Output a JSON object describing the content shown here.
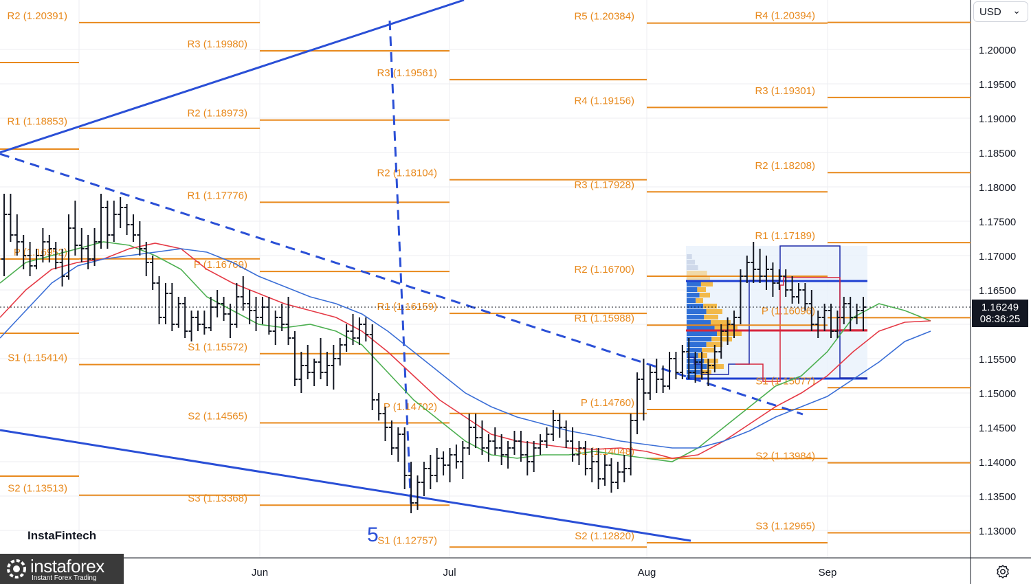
{
  "currency": {
    "label": "USD"
  },
  "brand": {
    "insta": "InstaFintech",
    "forex_name": "instaforex",
    "forex_tag": "Instant Forex Trading"
  },
  "price_badge": {
    "price": "1.16249",
    "countdown": "08:36:25"
  },
  "wave_label": "5",
  "colors": {
    "pivot": "#e8891c",
    "trend": "#2a4fd6",
    "ma_green": "#4caf50",
    "ma_red": "#e53945",
    "ma_blue": "#3a6ed6",
    "bars": "#131722"
  },
  "chart_data": {
    "type": "line",
    "title": "",
    "xlabel": "",
    "ylabel": "",
    "ylim": [
      1.125,
      1.2085
    ],
    "y_ticks": [
      "1.13000",
      "1.13500",
      "1.14000",
      "1.14500",
      "1.15000",
      "1.15500",
      "1.16500",
      "1.17000",
      "1.17500",
      "1.18000",
      "1.18500",
      "1.19000",
      "1.19500",
      "1.20000"
    ],
    "x_ticks": [
      "Jun",
      "Jul",
      "Aug",
      "Sep"
    ],
    "current_price": 1.16249,
    "pivot_levels": [
      {
        "period": "May",
        "labels": [
          {
            "label": "R2 (1.20391)",
            "value": 1.20391
          },
          {
            "label": "R1 (1.18853)",
            "value": 1.18853
          },
          {
            "label": "P (1.16952)",
            "value": 1.16952
          },
          {
            "label": "S1 (1.15414)",
            "value": 1.15414
          },
          {
            "label": "S2 (1.13513)",
            "value": 1.13513
          }
        ]
      },
      {
        "period": "Jun",
        "labels": [
          {
            "label": "R3 (1.19980)",
            "value": 1.1998
          },
          {
            "label": "R2 (1.18973)",
            "value": 1.18973
          },
          {
            "label": "R1 (1.17776)",
            "value": 1.17776
          },
          {
            "label": "P (1.16769)",
            "value": 1.16769
          },
          {
            "label": "S1 (1.15572)",
            "value": 1.15572
          },
          {
            "label": "S2 (1.14565)",
            "value": 1.14565
          },
          {
            "label": "S3 (1.13368)",
            "value": 1.13368
          }
        ]
      },
      {
        "period": "Jul",
        "labels": [
          {
            "label": "R3 (1.19561)",
            "value": 1.19561
          },
          {
            "label": "R2 (1.18104)",
            "value": 1.18104
          },
          {
            "label": "R1 (1.16159)",
            "value": 1.16159
          },
          {
            "label": "P (1.14702)",
            "value": 1.14702
          },
          {
            "label": "S1 (1.12757)",
            "value": 1.12757
          }
        ]
      },
      {
        "period": "Aug",
        "labels": [
          {
            "label": "R5 (1.20384)",
            "value": 1.20384
          },
          {
            "label": "R4 (1.19156)",
            "value": 1.19156
          },
          {
            "label": "R3 (1.17928)",
            "value": 1.17928
          },
          {
            "label": "R2 (1.16700)",
            "value": 1.167
          },
          {
            "label": "R1 (1.15988)",
            "value": 1.15988
          },
          {
            "label": "P (1.14760)",
            "value": 1.1476
          },
          {
            "label": "S1 (1.14048)",
            "value": 1.14048
          },
          {
            "label": "S2 (1.12820)",
            "value": 1.1282
          }
        ]
      },
      {
        "period": "Sep",
        "labels": [
          {
            "label": "R4 (1.20394)",
            "value": 1.20394
          },
          {
            "label": "R3 (1.19301)",
            "value": 1.19301
          },
          {
            "label": "R2 (1.18208)",
            "value": 1.18208
          },
          {
            "label": "R1 (1.17189)",
            "value": 1.17189
          },
          {
            "label": "P (1.16096)",
            "value": 1.16096
          },
          {
            "label": "S1 (1.15077)",
            "value": 1.15077
          },
          {
            "label": "S2 (1.13984)",
            "value": 1.13984
          },
          {
            "label": "S3 (1.12965)",
            "value": 1.12965
          }
        ]
      }
    ],
    "ohlc_bars": [
      {
        "o": 1.1695,
        "h": 1.179,
        "l": 1.167,
        "c": 1.176
      },
      {
        "o": 1.176,
        "h": 1.179,
        "l": 1.172,
        "c": 1.173
      },
      {
        "o": 1.173,
        "h": 1.176,
        "l": 1.17,
        "c": 1.172
      },
      {
        "o": 1.172,
        "h": 1.173,
        "l": 1.168,
        "c": 1.17
      },
      {
        "o": 1.17,
        "h": 1.172,
        "l": 1.167,
        "c": 1.1685
      },
      {
        "o": 1.1685,
        "h": 1.171,
        "l": 1.168,
        "c": 1.17
      },
      {
        "o": 1.17,
        "h": 1.174,
        "l": 1.169,
        "c": 1.172
      },
      {
        "o": 1.172,
        "h": 1.173,
        "l": 1.169,
        "c": 1.171
      },
      {
        "o": 1.171,
        "h": 1.172,
        "l": 1.168,
        "c": 1.169
      },
      {
        "o": 1.169,
        "h": 1.171,
        "l": 1.1655,
        "c": 1.167
      },
      {
        "o": 1.167,
        "h": 1.176,
        "l": 1.1665,
        "c": 1.174
      },
      {
        "o": 1.174,
        "h": 1.178,
        "l": 1.17,
        "c": 1.1715
      },
      {
        "o": 1.1715,
        "h": 1.174,
        "l": 1.169,
        "c": 1.171
      },
      {
        "o": 1.171,
        "h": 1.173,
        "l": 1.168,
        "c": 1.1695
      },
      {
        "o": 1.1695,
        "h": 1.174,
        "l": 1.1685,
        "c": 1.172
      },
      {
        "o": 1.172,
        "h": 1.179,
        "l": 1.171,
        "c": 1.177
      },
      {
        "o": 1.177,
        "h": 1.178,
        "l": 1.171,
        "c": 1.173
      },
      {
        "o": 1.173,
        "h": 1.178,
        "l": 1.172,
        "c": 1.176
      },
      {
        "o": 1.176,
        "h": 1.1785,
        "l": 1.174,
        "c": 1.177
      },
      {
        "o": 1.177,
        "h": 1.1775,
        "l": 1.173,
        "c": 1.1745
      },
      {
        "o": 1.1745,
        "h": 1.176,
        "l": 1.172,
        "c": 1.173
      },
      {
        "o": 1.173,
        "h": 1.175,
        "l": 1.17,
        "c": 1.171
      },
      {
        "o": 1.171,
        "h": 1.172,
        "l": 1.167,
        "c": 1.169
      },
      {
        "o": 1.169,
        "h": 1.17,
        "l": 1.165,
        "c": 1.166
      },
      {
        "o": 1.166,
        "h": 1.167,
        "l": 1.16,
        "c": 1.161
      },
      {
        "o": 1.161,
        "h": 1.166,
        "l": 1.16,
        "c": 1.1645
      },
      {
        "o": 1.1645,
        "h": 1.166,
        "l": 1.159,
        "c": 1.16
      },
      {
        "o": 1.16,
        "h": 1.164,
        "l": 1.1595,
        "c": 1.163
      },
      {
        "o": 1.163,
        "h": 1.164,
        "l": 1.158,
        "c": 1.159
      },
      {
        "o": 1.159,
        "h": 1.162,
        "l": 1.1575,
        "c": 1.161
      },
      {
        "o": 1.161,
        "h": 1.162,
        "l": 1.159,
        "c": 1.16
      },
      {
        "o": 1.16,
        "h": 1.162,
        "l": 1.1585,
        "c": 1.1595
      },
      {
        "o": 1.1595,
        "h": 1.164,
        "l": 1.159,
        "c": 1.1625
      },
      {
        "o": 1.1625,
        "h": 1.165,
        "l": 1.161,
        "c": 1.163
      },
      {
        "o": 1.163,
        "h": 1.164,
        "l": 1.1605,
        "c": 1.1615
      },
      {
        "o": 1.1615,
        "h": 1.163,
        "l": 1.158,
        "c": 1.16
      },
      {
        "o": 1.16,
        "h": 1.166,
        "l": 1.1595,
        "c": 1.164
      },
      {
        "o": 1.164,
        "h": 1.167,
        "l": 1.162,
        "c": 1.163
      },
      {
        "o": 1.163,
        "h": 1.165,
        "l": 1.16,
        "c": 1.162
      },
      {
        "o": 1.162,
        "h": 1.164,
        "l": 1.159,
        "c": 1.161
      },
      {
        "o": 1.161,
        "h": 1.164,
        "l": 1.16,
        "c": 1.1625
      },
      {
        "o": 1.1625,
        "h": 1.164,
        "l": 1.1585,
        "c": 1.159
      },
      {
        "o": 1.159,
        "h": 1.162,
        "l": 1.157,
        "c": 1.161
      },
      {
        "o": 1.161,
        "h": 1.163,
        "l": 1.159,
        "c": 1.16
      },
      {
        "o": 1.16,
        "h": 1.164,
        "l": 1.157,
        "c": 1.158
      },
      {
        "o": 1.158,
        "h": 1.159,
        "l": 1.151,
        "c": 1.152
      },
      {
        "o": 1.152,
        "h": 1.156,
        "l": 1.15,
        "c": 1.154
      },
      {
        "o": 1.154,
        "h": 1.157,
        "l": 1.152,
        "c": 1.153
      },
      {
        "o": 1.153,
        "h": 1.155,
        "l": 1.151,
        "c": 1.1545
      },
      {
        "o": 1.1545,
        "h": 1.158,
        "l": 1.152,
        "c": 1.153
      },
      {
        "o": 1.153,
        "h": 1.156,
        "l": 1.151,
        "c": 1.154
      },
      {
        "o": 1.154,
        "h": 1.157,
        "l": 1.1505,
        "c": 1.155
      },
      {
        "o": 1.155,
        "h": 1.158,
        "l": 1.154,
        "c": 1.157
      },
      {
        "o": 1.157,
        "h": 1.16,
        "l": 1.156,
        "c": 1.159
      },
      {
        "o": 1.159,
        "h": 1.1615,
        "l": 1.157,
        "c": 1.158
      },
      {
        "o": 1.158,
        "h": 1.161,
        "l": 1.157,
        "c": 1.16
      },
      {
        "o": 1.16,
        "h": 1.161,
        "l": 1.1575,
        "c": 1.1585
      },
      {
        "o": 1.1585,
        "h": 1.16,
        "l": 1.1475,
        "c": 1.149
      },
      {
        "o": 1.149,
        "h": 1.15,
        "l": 1.146,
        "c": 1.147
      },
      {
        "o": 1.147,
        "h": 1.148,
        "l": 1.143,
        "c": 1.145
      },
      {
        "o": 1.145,
        "h": 1.146,
        "l": 1.141,
        "c": 1.142
      },
      {
        "o": 1.142,
        "h": 1.145,
        "l": 1.14,
        "c": 1.144
      },
      {
        "o": 1.144,
        "h": 1.145,
        "l": 1.136,
        "c": 1.138
      },
      {
        "o": 1.138,
        "h": 1.14,
        "l": 1.1325,
        "c": 1.134
      },
      {
        "o": 1.134,
        "h": 1.138,
        "l": 1.133,
        "c": 1.137
      },
      {
        "o": 1.137,
        "h": 1.14,
        "l": 1.135,
        "c": 1.139
      },
      {
        "o": 1.139,
        "h": 1.141,
        "l": 1.136,
        "c": 1.138
      },
      {
        "o": 1.138,
        "h": 1.142,
        "l": 1.137,
        "c": 1.1405
      },
      {
        "o": 1.1405,
        "h": 1.1415,
        "l": 1.138,
        "c": 1.1395
      },
      {
        "o": 1.1395,
        "h": 1.142,
        "l": 1.137,
        "c": 1.141
      },
      {
        "o": 1.141,
        "h": 1.1425,
        "l": 1.139,
        "c": 1.14
      },
      {
        "o": 1.14,
        "h": 1.143,
        "l": 1.1375,
        "c": 1.142
      },
      {
        "o": 1.142,
        "h": 1.147,
        "l": 1.141,
        "c": 1.145
      },
      {
        "o": 1.145,
        "h": 1.147,
        "l": 1.142,
        "c": 1.1435
      },
      {
        "o": 1.1435,
        "h": 1.146,
        "l": 1.141,
        "c": 1.142
      },
      {
        "o": 1.142,
        "h": 1.144,
        "l": 1.14,
        "c": 1.143
      },
      {
        "o": 1.143,
        "h": 1.145,
        "l": 1.141,
        "c": 1.142
      },
      {
        "o": 1.142,
        "h": 1.144,
        "l": 1.1395,
        "c": 1.141
      },
      {
        "o": 1.141,
        "h": 1.143,
        "l": 1.139,
        "c": 1.142
      },
      {
        "o": 1.142,
        "h": 1.1445,
        "l": 1.141,
        "c": 1.143
      },
      {
        "o": 1.143,
        "h": 1.1445,
        "l": 1.14,
        "c": 1.141
      },
      {
        "o": 1.141,
        "h": 1.143,
        "l": 1.138,
        "c": 1.14
      },
      {
        "o": 1.14,
        "h": 1.143,
        "l": 1.1385,
        "c": 1.142
      },
      {
        "o": 1.142,
        "h": 1.144,
        "l": 1.141,
        "c": 1.143
      },
      {
        "o": 1.143,
        "h": 1.145,
        "l": 1.142,
        "c": 1.144
      },
      {
        "o": 1.144,
        "h": 1.1475,
        "l": 1.143,
        "c": 1.146
      },
      {
        "o": 1.146,
        "h": 1.147,
        "l": 1.1435,
        "c": 1.145
      },
      {
        "o": 1.145,
        "h": 1.146,
        "l": 1.142,
        "c": 1.143
      },
      {
        "o": 1.143,
        "h": 1.145,
        "l": 1.14,
        "c": 1.141
      },
      {
        "o": 1.141,
        "h": 1.143,
        "l": 1.1395,
        "c": 1.142
      },
      {
        "o": 1.142,
        "h": 1.143,
        "l": 1.138,
        "c": 1.139
      },
      {
        "o": 1.139,
        "h": 1.142,
        "l": 1.137,
        "c": 1.14
      },
      {
        "o": 1.14,
        "h": 1.142,
        "l": 1.136,
        "c": 1.1375
      },
      {
        "o": 1.1375,
        "h": 1.141,
        "l": 1.1365,
        "c": 1.1395
      },
      {
        "o": 1.1395,
        "h": 1.1405,
        "l": 1.1355,
        "c": 1.137
      },
      {
        "o": 1.137,
        "h": 1.14,
        "l": 1.136,
        "c": 1.1385
      },
      {
        "o": 1.1385,
        "h": 1.141,
        "l": 1.137,
        "c": 1.139
      },
      {
        "o": 1.139,
        "h": 1.147,
        "l": 1.138,
        "c": 1.146
      },
      {
        "o": 1.146,
        "h": 1.153,
        "l": 1.144,
        "c": 1.152
      },
      {
        "o": 1.152,
        "h": 1.155,
        "l": 1.146,
        "c": 1.15
      },
      {
        "o": 1.15,
        "h": 1.154,
        "l": 1.149,
        "c": 1.153
      },
      {
        "o": 1.153,
        "h": 1.155,
        "l": 1.15,
        "c": 1.152
      },
      {
        "o": 1.152,
        "h": 1.154,
        "l": 1.15,
        "c": 1.151
      },
      {
        "o": 1.151,
        "h": 1.156,
        "l": 1.1505,
        "c": 1.155
      },
      {
        "o": 1.155,
        "h": 1.156,
        "l": 1.152,
        "c": 1.153
      },
      {
        "o": 1.153,
        "h": 1.157,
        "l": 1.152,
        "c": 1.156
      },
      {
        "o": 1.156,
        "h": 1.158,
        "l": 1.152,
        "c": 1.153
      },
      {
        "o": 1.153,
        "h": 1.156,
        "l": 1.1515,
        "c": 1.1545
      },
      {
        "o": 1.1545,
        "h": 1.156,
        "l": 1.152,
        "c": 1.153
      },
      {
        "o": 1.153,
        "h": 1.155,
        "l": 1.151,
        "c": 1.154
      },
      {
        "o": 1.154,
        "h": 1.157,
        "l": 1.153,
        "c": 1.156
      },
      {
        "o": 1.156,
        "h": 1.16,
        "l": 1.155,
        "c": 1.159
      },
      {
        "o": 1.159,
        "h": 1.161,
        "l": 1.157,
        "c": 1.16
      },
      {
        "o": 1.16,
        "h": 1.162,
        "l": 1.158,
        "c": 1.161
      },
      {
        "o": 1.161,
        "h": 1.168,
        "l": 1.16,
        "c": 1.167
      },
      {
        "o": 1.167,
        "h": 1.17,
        "l": 1.166,
        "c": 1.169
      },
      {
        "o": 1.169,
        "h": 1.172,
        "l": 1.166,
        "c": 1.168
      },
      {
        "o": 1.168,
        "h": 1.171,
        "l": 1.166,
        "c": 1.167
      },
      {
        "o": 1.167,
        "h": 1.17,
        "l": 1.165,
        "c": 1.168
      },
      {
        "o": 1.168,
        "h": 1.169,
        "l": 1.164,
        "c": 1.166
      },
      {
        "o": 1.166,
        "h": 1.168,
        "l": 1.165,
        "c": 1.167
      },
      {
        "o": 1.167,
        "h": 1.168,
        "l": 1.164,
        "c": 1.165
      },
      {
        "o": 1.165,
        "h": 1.167,
        "l": 1.163,
        "c": 1.164
      },
      {
        "o": 1.164,
        "h": 1.166,
        "l": 1.163,
        "c": 1.165
      },
      {
        "o": 1.165,
        "h": 1.166,
        "l": 1.162,
        "c": 1.163
      },
      {
        "o": 1.163,
        "h": 1.165,
        "l": 1.159,
        "c": 1.16
      },
      {
        "o": 1.16,
        "h": 1.162,
        "l": 1.158,
        "c": 1.161
      },
      {
        "o": 1.161,
        "h": 1.163,
        "l": 1.159,
        "c": 1.162
      },
      {
        "o": 1.162,
        "h": 1.163,
        "l": 1.158,
        "c": 1.159
      },
      {
        "o": 1.159,
        "h": 1.162,
        "l": 1.158,
        "c": 1.161
      },
      {
        "o": 1.161,
        "h": 1.164,
        "l": 1.16,
        "c": 1.163
      },
      {
        "o": 1.163,
        "h": 1.164,
        "l": 1.159,
        "c": 1.161
      },
      {
        "o": 1.161,
        "h": 1.163,
        "l": 1.16,
        "c": 1.162
      },
      {
        "o": 1.162,
        "h": 1.164,
        "l": 1.159,
        "c": 1.1625
      }
    ],
    "moving_averages": [
      {
        "color": "green",
        "values": [
          1.166,
          1.169,
          1.17,
          1.171,
          1.172,
          1.1715,
          1.17,
          1.168,
          1.164,
          1.162,
          1.16,
          1.1595,
          1.16,
          1.159,
          1.157,
          1.153,
          1.149,
          1.146,
          1.143,
          1.141,
          1.1405,
          1.141,
          1.141,
          1.1415,
          1.141,
          1.1405,
          1.14,
          1.142,
          1.145,
          1.148,
          1.151,
          1.1525,
          1.156,
          1.161,
          1.163,
          1.162,
          1.1605
        ]
      },
      {
        "color": "red",
        "values": [
          1.161,
          1.165,
          1.168,
          1.169,
          1.1695,
          1.171,
          1.1718,
          1.171,
          1.168,
          1.166,
          1.1645,
          1.163,
          1.162,
          1.161,
          1.159,
          1.156,
          1.1525,
          1.149,
          1.1465,
          1.144,
          1.143,
          1.1425,
          1.142,
          1.1418,
          1.142,
          1.1415,
          1.1405,
          1.141,
          1.143,
          1.1455,
          1.148,
          1.15,
          1.1525,
          1.156,
          1.159,
          1.1603,
          1.1605
        ]
      },
      {
        "color": "blue",
        "values": [
          1.158,
          1.162,
          1.166,
          1.1685,
          1.1695,
          1.17,
          1.1705,
          1.171,
          1.1705,
          1.169,
          1.167,
          1.1655,
          1.164,
          1.163,
          1.1615,
          1.159,
          1.156,
          1.153,
          1.15,
          1.148,
          1.1465,
          1.1455,
          1.1445,
          1.1438,
          1.143,
          1.1425,
          1.142,
          1.142,
          1.143,
          1.1445,
          1.1465,
          1.148,
          1.1495,
          1.152,
          1.1545,
          1.1575,
          1.159
        ]
      }
    ],
    "grid": true
  }
}
